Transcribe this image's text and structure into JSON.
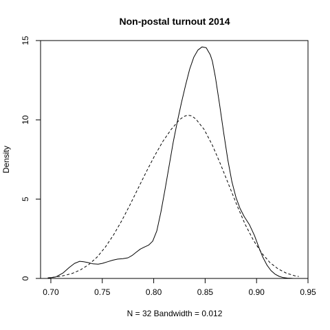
{
  "chart_data": {
    "type": "line",
    "title": "Non-postal turnout 2014",
    "xlabel": "N = 32   Bandwidth = 0.012",
    "ylabel": "Density",
    "xlim": [
      0.69,
      0.95
    ],
    "ylim": [
      0,
      15
    ],
    "x_ticks": [
      0.7,
      0.75,
      0.8,
      0.85,
      0.9,
      0.95
    ],
    "x_tick_labels": [
      "0.70",
      "0.75",
      "0.80",
      "0.85",
      "0.90",
      "0.95"
    ],
    "y_ticks": [
      0,
      5,
      10,
      15
    ],
    "y_tick_labels": [
      "0",
      "5",
      "10",
      "15"
    ],
    "grid": false,
    "series": [
      {
        "style": "solid",
        "x": [
          0.697,
          0.705,
          0.712,
          0.718,
          0.723,
          0.728,
          0.732,
          0.736,
          0.741,
          0.746,
          0.75,
          0.755,
          0.76,
          0.765,
          0.77,
          0.775,
          0.779,
          0.783,
          0.787,
          0.791,
          0.795,
          0.799,
          0.803,
          0.807,
          0.811,
          0.815,
          0.819,
          0.823,
          0.827,
          0.831,
          0.835,
          0.839,
          0.843,
          0.847,
          0.851,
          0.855,
          0.857,
          0.86,
          0.864,
          0.868,
          0.872,
          0.876,
          0.88,
          0.884,
          0.888,
          0.893,
          0.898,
          0.902,
          0.906,
          0.91,
          0.914,
          0.918,
          0.922,
          0.926,
          0.93,
          0.935,
          0.941
        ],
        "y": [
          0.02,
          0.1,
          0.35,
          0.7,
          0.95,
          1.08,
          1.05,
          1.0,
          0.92,
          0.9,
          0.95,
          1.05,
          1.15,
          1.22,
          1.25,
          1.3,
          1.45,
          1.65,
          1.85,
          1.98,
          2.1,
          2.35,
          3.0,
          4.2,
          5.6,
          7.1,
          8.6,
          9.9,
          11.1,
          12.2,
          13.2,
          13.95,
          14.4,
          14.6,
          14.55,
          14.1,
          13.7,
          12.7,
          11.0,
          9.2,
          7.5,
          6.1,
          5.1,
          4.4,
          3.9,
          3.4,
          2.7,
          2.0,
          1.35,
          0.85,
          0.5,
          0.27,
          0.13,
          0.05,
          0.02,
          0.005,
          0.0
        ]
      },
      {
        "style": "dashed",
        "x": [
          0.697,
          0.705,
          0.713,
          0.721,
          0.729,
          0.737,
          0.745,
          0.753,
          0.761,
          0.769,
          0.777,
          0.785,
          0.793,
          0.801,
          0.809,
          0.817,
          0.825,
          0.829,
          0.833,
          0.837,
          0.841,
          0.849,
          0.857,
          0.865,
          0.873,
          0.881,
          0.889,
          0.897,
          0.905,
          0.913,
          0.921,
          0.929,
          0.937,
          0.941
        ],
        "y": [
          0.04,
          0.09,
          0.18,
          0.32,
          0.55,
          0.88,
          1.35,
          1.98,
          2.75,
          3.65,
          4.65,
          5.7,
          6.75,
          7.75,
          8.65,
          9.4,
          10.0,
          10.2,
          10.3,
          10.25,
          10.05,
          9.4,
          8.4,
          7.2,
          5.9,
          4.6,
          3.4,
          2.4,
          1.6,
          1.0,
          0.6,
          0.33,
          0.17,
          0.12
        ]
      }
    ]
  }
}
